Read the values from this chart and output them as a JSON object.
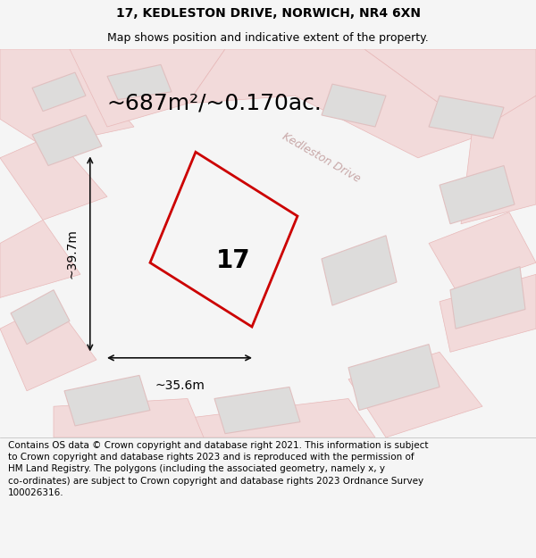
{
  "title_line1": "17, KEDLESTON DRIVE, NORWICH, NR4 6XN",
  "title_line2": "Map shows position and indicative extent of the property.",
  "area_text": "~687m²/~0.170ac.",
  "label_17": "17",
  "dim_width": "~35.6m",
  "dim_height": "~39.7m",
  "road_label": "Kedleston Drive",
  "footer_text_wrapped": "Contains OS data © Crown copyright and database right 2021. This information is subject\nto Crown copyright and database rights 2023 and is reproduced with the permission of\nHM Land Registry. The polygons (including the associated geometry, namely x, y\nco-ordinates) are subject to Crown copyright and database rights 2023 Ordnance Survey\n100026316.",
  "bg_color": "#f5f5f5",
  "map_bg": "#eeede9",
  "plot_edge_color": "#cc0000",
  "road_fill": "#f2dada",
  "road_line": "#e8b8b8",
  "building_fill": "#dddcdb",
  "building_line": "#e0c0c0",
  "footer_bg": "#ffffff",
  "dim_line_color": "#111111",
  "title_fontsize": 10,
  "subtitle_fontsize": 9,
  "area_fontsize": 18,
  "label_fontsize": 20,
  "dim_fontsize": 10,
  "road_label_fontsize": 9,
  "footer_fontsize": 7.5,
  "plot_linewidth": 2.0
}
